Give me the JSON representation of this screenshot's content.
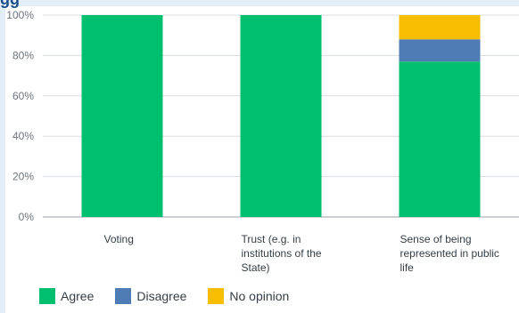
{
  "header": {
    "title_fragment": "gg"
  },
  "chart_data": {
    "type": "bar",
    "stacked": true,
    "categories": [
      [
        "Voting"
      ],
      [
        "Trust (e.g. in",
        "institutions of the",
        "State)"
      ],
      [
        "Sense of being",
        "represented in public",
        "life"
      ]
    ],
    "series": [
      {
        "name": "Agree",
        "color": "#00bf6f",
        "values": [
          100,
          100,
          77
        ]
      },
      {
        "name": "Disagree",
        "color": "#507cb6",
        "values": [
          0,
          0,
          11
        ]
      },
      {
        "name": "No opinion",
        "color": "#f9be00",
        "values": [
          0,
          0,
          12
        ]
      }
    ],
    "yticks": [
      "0%",
      "20%",
      "40%",
      "60%",
      "80%",
      "100%"
    ],
    "ylim": [
      0,
      100
    ],
    "grid": true,
    "legend_position": "bottom-left"
  }
}
